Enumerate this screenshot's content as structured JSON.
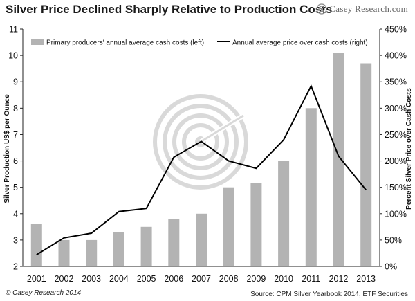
{
  "header": {
    "title": "Silver Price Declined Sharply Relative to Production Costs",
    "logo_text": "Casey Research.com"
  },
  "footer": {
    "copyright": "© Casey Research 2014",
    "source": "Source:  CPM Silver Yearbook 2014, ETF Securities"
  },
  "colors": {
    "bar": "#b3b3b3",
    "line": "#000000",
    "grid": "#d0d0d0",
    "watermark": "#d9d9d9"
  },
  "chart_data": {
    "type": "bar",
    "title": "Silver Price Declined Sharply Relative to Production Costs",
    "categories": [
      "2001",
      "2002",
      "2003",
      "2004",
      "2005",
      "2006",
      "2007",
      "2008",
      "2009",
      "2010",
      "2011",
      "2012",
      "2013"
    ],
    "series": [
      {
        "name": "Primary producers' annual average cash costs (left)",
        "type": "bar",
        "axis": "left",
        "values": [
          3.6,
          3.0,
          3.0,
          3.3,
          3.5,
          3.8,
          4.0,
          5.0,
          5.15,
          6.0,
          8.0,
          10.1,
          9.7
        ]
      },
      {
        "name": "Annual average price over cash costs (right)",
        "type": "line",
        "axis": "right",
        "values": [
          22,
          54,
          63,
          104,
          110,
          207,
          237,
          200,
          186,
          240,
          342,
          209,
          145
        ]
      }
    ],
    "ylabel": "Silver Production US$ per Ounce",
    "ylim": [
      2,
      11
    ],
    "yticks": [
      "2",
      "3",
      "4",
      "5",
      "6",
      "7",
      "8",
      "9",
      "10",
      "11"
    ],
    "y2label": "Percent Silver Price over Cash Costs",
    "y2lim": [
      0,
      450
    ],
    "y2ticks": [
      "0%",
      "50%",
      "100%",
      "150%",
      "200%",
      "250%",
      "300%",
      "350%",
      "400%",
      "450%"
    ],
    "grid": false,
    "legend_position": "top"
  }
}
